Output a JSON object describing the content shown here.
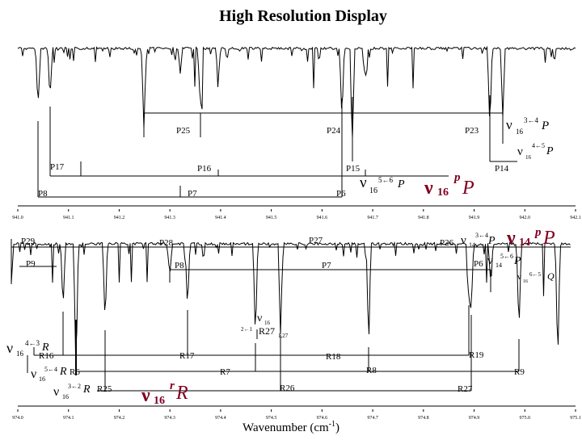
{
  "title": "High Resolution Display",
  "chart_data": [
    {
      "type": "line",
      "panel": "upper",
      "x_ticks": [
        "941.0",
        "941.1",
        "941.2",
        "941.3",
        "941.4",
        "941.5",
        "941.6",
        "941.7",
        "941.8",
        "941.9",
        "942.0",
        "942.1"
      ],
      "xlim": [
        941.0,
        942.1
      ],
      "assignments": [
        {
          "label": "P25",
          "x": 941.21
        },
        {
          "label": "P24",
          "x": 941.62
        },
        {
          "label": "P23",
          "x": 941.92
        },
        {
          "label": "P17",
          "x": 941.01
        },
        {
          "label": "P16",
          "x": 941.38
        },
        {
          "label": "P15",
          "x": 941.69
        },
        {
          "label": "P14",
          "x": 942.02
        },
        {
          "label": "P8",
          "x": 941.0
        },
        {
          "label": "P7",
          "x": 941.32
        },
        {
          "label": "P6",
          "x": 941.67
        }
      ],
      "band_labels": [
        {
          "text": "ν16 3←4 P",
          "color": "#000000"
        },
        {
          "text": "ν16 4←5 P",
          "color": "#000000"
        },
        {
          "text": "ν16 5←6 P",
          "color": "#000000"
        },
        {
          "text": "ν16 pP",
          "color": "#800020"
        }
      ]
    },
    {
      "type": "line",
      "panel": "lower",
      "x_ticks": [
        "974.0",
        "974.1",
        "974.2",
        "974.3",
        "974.4",
        "974.5",
        "974.6",
        "974.7",
        "974.8",
        "974.9",
        "975.0",
        "975.1"
      ],
      "xlim": [
        974.0,
        975.1
      ],
      "xlabel": "Wavenumber (cm-1)",
      "assignments": [
        {
          "label": "P29",
          "x": 974.0
        },
        {
          "label": "P28",
          "x": 974.3
        },
        {
          "label": "P27",
          "x": 974.62
        },
        {
          "label": "P26",
          "x": 974.91
        },
        {
          "label": "P9",
          "x": 974.0
        },
        {
          "label": "P8",
          "x": 974.32
        },
        {
          "label": "P7",
          "x": 974.63
        },
        {
          "label": "P6",
          "x": 974.96
        },
        {
          "label": "R16",
          "x": 974.08
        },
        {
          "label": "R17",
          "x": 974.37
        },
        {
          "label": "R18",
          "x": 974.67
        },
        {
          "label": "R19",
          "x": 974.96
        },
        {
          "label": "R6",
          "x": 974.09
        },
        {
          "label": "R7",
          "x": 974.46
        },
        {
          "label": "R8",
          "x": 974.75
        },
        {
          "label": "R9",
          "x": 975.04
        },
        {
          "label": "R25",
          "x": 974.2
        },
        {
          "label": "R26",
          "x": 974.52
        },
        {
          "label": "R27",
          "x": 974.93
        },
        {
          "label": "R27 1,27",
          "x": 974.4
        }
      ],
      "band_labels": [
        {
          "text": "ν14 3←4 P",
          "color": "#000000"
        },
        {
          "text": "ν14 5←6 P",
          "color": "#000000"
        },
        {
          "text": "ν16 6←5 Q",
          "color": "#000000"
        },
        {
          "text": "ν14 pP",
          "color": "#800020"
        },
        {
          "text": "ν16 4←3 R",
          "color": "#000000"
        },
        {
          "text": "ν16 5←4 R",
          "color": "#000000"
        },
        {
          "text": "ν16 3←2 R",
          "color": "#000000"
        },
        {
          "text": "ν16 2←1",
          "color": "#000000"
        },
        {
          "text": "ν16 rR",
          "color": "#800020"
        }
      ]
    }
  ],
  "labels": {
    "u_p25": "P25",
    "u_p24": "P24",
    "u_p23": "P23",
    "u_p17": "P17",
    "u_p16": "P16",
    "u_p15": "P15",
    "u_p14": "P14",
    "u_p8": "P8",
    "u_p7": "P7",
    "u_p6": "P6",
    "l_p29": "P29",
    "l_p28": "P28",
    "l_p27": "P27",
    "l_p26": "P26",
    "l_p9": "P9",
    "l_p8": "P8",
    "l_p7": "P7",
    "l_p6": "P6",
    "l_r16": "R16",
    "l_r17": "R17",
    "l_r18": "R18",
    "l_r19": "R19",
    "l_r6": "R6",
    "l_r7": "R7",
    "l_r8": "R8",
    "l_r9": "R9",
    "l_r25": "R25",
    "l_r26": "R26",
    "l_r27": "R27",
    "l_r27b": "R27",
    "l_r27b_sub": "1,27",
    "nu": "ν",
    "s16": "16",
    "s14": "14",
    "P": "P",
    "R": "R",
    "Q": "Q",
    "pP_sup": "p",
    "rR_sup": "r",
    "t_34": "3←4",
    "t_45": "4←5",
    "t_56": "5←6",
    "t_43": "4←3",
    "t_54": "5←4",
    "t_32": "3←2",
    "t_21": "2←1",
    "t_65": "6←5",
    "xlabel_main": "Wavenumber (cm",
    "xlabel_sup": "-1",
    "xlabel_end": ")"
  }
}
